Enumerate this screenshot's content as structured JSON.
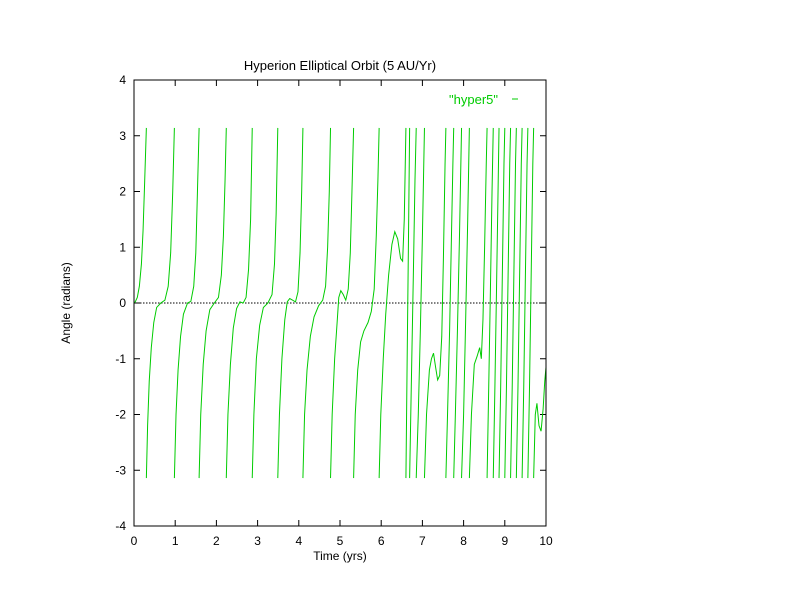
{
  "chart_data": {
    "type": "line",
    "title": "Hyperion Elliptical Orbit (5 AU/Yr)",
    "xlabel": "Time (yrs)",
    "ylabel": "Angle (radians)",
    "xlim": [
      0,
      10
    ],
    "ylim": [
      -4,
      4
    ],
    "xticks": [
      0,
      1,
      2,
      3,
      4,
      5,
      6,
      7,
      8,
      9,
      10
    ],
    "yticks": [
      -4,
      -3,
      -2,
      -1,
      0,
      1,
      2,
      3,
      4
    ],
    "grid": false,
    "zero_line": true,
    "legend_position": "top-right",
    "series": [
      {
        "name": "\"hyper5\"",
        "color": "#00cc00",
        "segments": [
          [
            [
              0.0,
              0.0
            ],
            [
              0.03,
              0.02
            ],
            [
              0.08,
              0.1
            ],
            [
              0.13,
              0.3
            ],
            [
              0.18,
              0.7
            ],
            [
              0.22,
              1.3
            ],
            [
              0.26,
              2.2
            ],
            [
              0.3,
              3.14
            ]
          ],
          [
            [
              0.3,
              -3.14
            ],
            [
              0.33,
              -2.2
            ],
            [
              0.37,
              -1.4
            ],
            [
              0.42,
              -0.8
            ],
            [
              0.48,
              -0.35
            ],
            [
              0.55,
              -0.08
            ],
            [
              0.65,
              0.0
            ],
            [
              0.75,
              0.05
            ],
            [
              0.83,
              0.3
            ],
            [
              0.89,
              0.9
            ],
            [
              0.94,
              2.0
            ],
            [
              0.98,
              3.14
            ]
          ],
          [
            [
              0.98,
              -3.14
            ],
            [
              1.02,
              -2.0
            ],
            [
              1.07,
              -1.2
            ],
            [
              1.13,
              -0.6
            ],
            [
              1.2,
              -0.2
            ],
            [
              1.3,
              0.0
            ],
            [
              1.38,
              0.03
            ],
            [
              1.45,
              0.3
            ],
            [
              1.5,
              0.9
            ],
            [
              1.54,
              2.0
            ],
            [
              1.58,
              3.14
            ]
          ],
          [
            [
              1.58,
              -3.14
            ],
            [
              1.62,
              -2.0
            ],
            [
              1.68,
              -1.1
            ],
            [
              1.75,
              -0.5
            ],
            [
              1.84,
              -0.12
            ],
            [
              1.95,
              0.0
            ],
            [
              2.05,
              0.1
            ],
            [
              2.12,
              0.5
            ],
            [
              2.17,
              1.2
            ],
            [
              2.21,
              2.2
            ],
            [
              2.24,
              3.14
            ]
          ],
          [
            [
              2.24,
              -3.14
            ],
            [
              2.28,
              -2.0
            ],
            [
              2.34,
              -1.1
            ],
            [
              2.41,
              -0.45
            ],
            [
              2.49,
              -0.1
            ],
            [
              2.57,
              0.02
            ],
            [
              2.65,
              0.0
            ],
            [
              2.72,
              0.1
            ],
            [
              2.78,
              0.6
            ],
            [
              2.83,
              1.5
            ],
            [
              2.87,
              3.14
            ]
          ],
          [
            [
              2.87,
              -3.14
            ],
            [
              2.91,
              -2.0
            ],
            [
              2.97,
              -1.0
            ],
            [
              3.05,
              -0.4
            ],
            [
              3.14,
              -0.08
            ],
            [
              3.25,
              0.0
            ],
            [
              3.35,
              0.15
            ],
            [
              3.41,
              0.7
            ],
            [
              3.45,
              1.6
            ],
            [
              3.49,
              3.14
            ]
          ],
          [
            [
              3.49,
              -3.14
            ],
            [
              3.53,
              -2.0
            ],
            [
              3.59,
              -1.0
            ],
            [
              3.66,
              -0.3
            ],
            [
              3.72,
              0.02
            ],
            [
              3.78,
              0.08
            ],
            [
              3.85,
              0.05
            ],
            [
              3.92,
              0.02
            ],
            [
              3.98,
              0.2
            ],
            [
              4.03,
              0.9
            ],
            [
              4.07,
              2.0
            ],
            [
              4.1,
              3.14
            ]
          ],
          [
            [
              4.1,
              -3.14
            ],
            [
              4.14,
              -2.0
            ],
            [
              4.2,
              -1.2
            ],
            [
              4.28,
              -0.6
            ],
            [
              4.37,
              -0.25
            ],
            [
              4.48,
              -0.05
            ],
            [
              4.58,
              0.05
            ],
            [
              4.65,
              0.3
            ],
            [
              4.7,
              1.0
            ],
            [
              4.74,
              2.0
            ],
            [
              4.77,
              3.14
            ]
          ],
          [
            [
              4.77,
              -3.14
            ],
            [
              4.81,
              -2.0
            ],
            [
              4.87,
              -1.0
            ],
            [
              4.93,
              -0.35
            ],
            [
              4.97,
              0.1
            ],
            [
              5.02,
              0.22
            ],
            [
              5.08,
              0.15
            ],
            [
              5.14,
              0.05
            ],
            [
              5.2,
              0.25
            ],
            [
              5.25,
              0.9
            ],
            [
              5.29,
              2.0
            ],
            [
              5.33,
              3.14
            ]
          ],
          [
            [
              5.33,
              -3.14
            ],
            [
              5.37,
              -2.0
            ],
            [
              5.43,
              -1.2
            ],
            [
              5.5,
              -0.7
            ],
            [
              5.58,
              -0.5
            ],
            [
              5.68,
              -0.35
            ],
            [
              5.76,
              -0.15
            ],
            [
              5.83,
              0.25
            ],
            [
              5.88,
              1.2
            ],
            [
              5.92,
              2.2
            ],
            [
              5.95,
              3.14
            ]
          ],
          [
            [
              5.95,
              -3.14
            ],
            [
              5.99,
              -2.0
            ],
            [
              6.05,
              -1.0
            ],
            [
              6.11,
              -0.2
            ],
            [
              6.18,
              0.5
            ],
            [
              6.26,
              1.05
            ],
            [
              6.33,
              1.28
            ],
            [
              6.4,
              1.15
            ],
            [
              6.47,
              0.8
            ],
            [
              6.52,
              0.75
            ],
            [
              6.56,
              1.5
            ],
            [
              6.6,
              3.14
            ]
          ],
          [
            [
              6.6,
              -3.14
            ],
            [
              6.63,
              -1.0
            ],
            [
              6.66,
              1.0
            ],
            [
              6.69,
              3.14
            ]
          ],
          [
            [
              6.69,
              -3.14
            ],
            [
              6.73,
              -1.5
            ],
            [
              6.78,
              0.5
            ],
            [
              6.82,
              2.2
            ],
            [
              6.85,
              3.14
            ]
          ],
          [
            [
              6.85,
              -3.14
            ],
            [
              6.9,
              -2.0
            ],
            [
              6.95,
              -0.5
            ],
            [
              7.0,
              1.2
            ],
            [
              7.05,
              3.14
            ]
          ],
          [
            [
              7.05,
              -3.14
            ],
            [
              7.1,
              -2.0
            ],
            [
              7.17,
              -1.2
            ],
            [
              7.22,
              -1.0
            ],
            [
              7.27,
              -0.9
            ],
            [
              7.32,
              -1.15
            ],
            [
              7.37,
              -1.38
            ],
            [
              7.42,
              -1.3
            ],
            [
              7.47,
              -0.6
            ],
            [
              7.51,
              0.8
            ],
            [
              7.55,
              2.5
            ],
            [
              7.57,
              3.14
            ]
          ],
          [
            [
              7.57,
              -3.14
            ],
            [
              7.61,
              -2.0
            ],
            [
              7.66,
              -0.5
            ],
            [
              7.7,
              1.0
            ],
            [
              7.74,
              2.5
            ],
            [
              7.76,
              3.14
            ]
          ],
          [
            [
              7.76,
              -3.14
            ],
            [
              7.8,
              -2.0
            ],
            [
              7.85,
              -0.5
            ],
            [
              7.9,
              1.2
            ],
            [
              7.95,
              3.14
            ]
          ],
          [
            [
              7.95,
              -3.14
            ],
            [
              8.0,
              -2.0
            ],
            [
              8.05,
              -0.3
            ],
            [
              8.1,
              1.5
            ],
            [
              8.14,
              3.14
            ]
          ],
          [
            [
              8.14,
              -3.14
            ],
            [
              8.19,
              -2.0
            ],
            [
              8.26,
              -1.1
            ],
            [
              8.33,
              -0.95
            ],
            [
              8.39,
              -0.8
            ],
            [
              8.43,
              -1.0
            ],
            [
              8.47,
              -0.3
            ],
            [
              8.51,
              1.0
            ],
            [
              8.55,
              2.5
            ],
            [
              8.57,
              3.14
            ]
          ],
          [
            [
              8.57,
              -3.14
            ],
            [
              8.61,
              -1.5
            ],
            [
              8.65,
              0.2
            ],
            [
              8.69,
              2.0
            ],
            [
              8.72,
              3.14
            ]
          ],
          [
            [
              8.72,
              -3.14
            ],
            [
              8.76,
              -1.5
            ],
            [
              8.8,
              0.3
            ],
            [
              8.84,
              2.2
            ],
            [
              8.86,
              3.14
            ]
          ],
          [
            [
              8.86,
              -3.14
            ],
            [
              8.9,
              -1.5
            ],
            [
              8.94,
              0.5
            ],
            [
              8.98,
              2.5
            ],
            [
              9.0,
              3.14
            ]
          ],
          [
            [
              9.0,
              -3.14
            ],
            [
              9.04,
              -1.5
            ],
            [
              9.08,
              0.5
            ],
            [
              9.12,
              2.5
            ],
            [
              9.14,
              3.14
            ]
          ],
          [
            [
              9.14,
              -3.14
            ],
            [
              9.18,
              -1.5
            ],
            [
              9.22,
              0.5
            ],
            [
              9.26,
              2.5
            ],
            [
              9.28,
              3.14
            ]
          ],
          [
            [
              9.28,
              -3.14
            ],
            [
              9.32,
              -1.5
            ],
            [
              9.36,
              0.5
            ],
            [
              9.4,
              2.5
            ],
            [
              9.42,
              3.14
            ]
          ],
          [
            [
              9.42,
              -3.14
            ],
            [
              9.46,
              -1.5
            ],
            [
              9.5,
              0.5
            ],
            [
              9.54,
              2.5
            ],
            [
              9.56,
              3.14
            ]
          ],
          [
            [
              9.56,
              -3.14
            ],
            [
              9.6,
              -1.5
            ],
            [
              9.64,
              0.5
            ],
            [
              9.68,
              2.5
            ],
            [
              9.7,
              3.14
            ]
          ],
          [
            [
              9.7,
              -3.14
            ],
            [
              9.74,
              -2.0
            ],
            [
              9.78,
              -1.8
            ],
            [
              9.83,
              -2.2
            ],
            [
              9.88,
              -2.3
            ],
            [
              9.93,
              -1.9
            ],
            [
              9.97,
              -1.4
            ],
            [
              10.0,
              -1.15
            ]
          ]
        ]
      }
    ]
  }
}
